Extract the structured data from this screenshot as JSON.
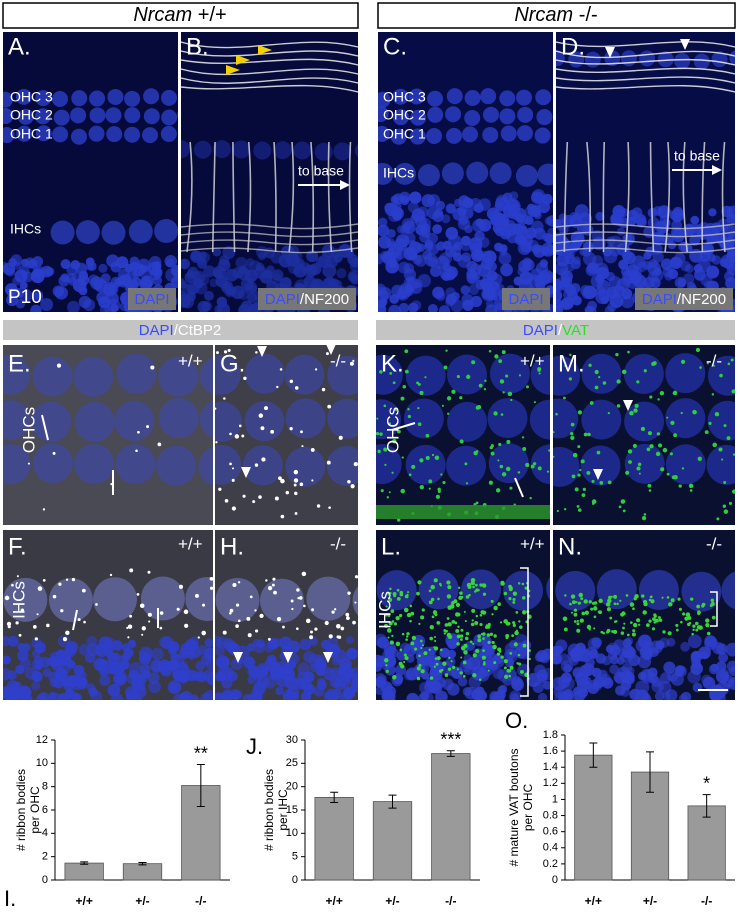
{
  "headers": [
    {
      "gene": "Nrcam",
      "genotype": "+/+"
    },
    {
      "gene": "Nrcam",
      "genotype": "-/-"
    }
  ],
  "stain_bars": [
    [
      "DAPI",
      "/CtBP2"
    ],
    [
      "DAPI",
      "/",
      "VAT"
    ]
  ],
  "panels": {
    "A": {
      "label": "A.",
      "rows": [
        "OHC 3",
        "OHC 2",
        "OHC 1"
      ],
      "inner": "IHCs",
      "age": "P10",
      "stain": "DAPI"
    },
    "B": {
      "label": "B.",
      "arrow": "to base",
      "stain": [
        "DAPI",
        "/NF200"
      ]
    },
    "C": {
      "label": "C.",
      "rows": [
        "OHC 3",
        "OHC 2",
        "OHC 1"
      ],
      "inner": "IHCs",
      "stain": "DAPI"
    },
    "D": {
      "label": "D.",
      "arrow": "to base",
      "stain": [
        "DAPI",
        "/NF200"
      ]
    },
    "E": {
      "label": "E.",
      "genotype": "+/+",
      "cells": "OHCs"
    },
    "F": {
      "label": "F.",
      "genotype": "+/+",
      "cells": "IHCs"
    },
    "G": {
      "label": "G.",
      "genotype": "-/-"
    },
    "H": {
      "label": "H.",
      "genotype": "-/-"
    },
    "K": {
      "label": "K.",
      "genotype": "+/+",
      "cells": "OHCs"
    },
    "L": {
      "label": "L.",
      "genotype": "+/+",
      "cells": "IHCs"
    },
    "M": {
      "label": "M.",
      "genotype": "-/-"
    },
    "N": {
      "label": "N.",
      "genotype": "-/-"
    }
  },
  "chart_data": [
    {
      "type": "bar",
      "panel_label": "I.",
      "ylabel": [
        "# ribbon bodies",
        "per OHC"
      ],
      "categories": [
        "+/+",
        "+/-",
        "-/-"
      ],
      "values": [
        1.45,
        1.4,
        8.1
      ],
      "errors": [
        0.1,
        0.1,
        1.8
      ],
      "value_annotations": [
        null,
        null,
        "**"
      ],
      "color": "#9a9a9a",
      "ylim": [
        0,
        12
      ],
      "yticks": [
        0,
        2,
        4,
        6,
        8,
        10,
        12
      ]
    },
    {
      "type": "bar",
      "panel_label": "J.",
      "ylabel": [
        "# ribbon bodies",
        "per IHC"
      ],
      "categories": [
        "+/+",
        "+/-",
        "-/-"
      ],
      "values": [
        17.7,
        16.8,
        27.1
      ],
      "errors": [
        1.1,
        1.4,
        0.6
      ],
      "value_annotations": [
        null,
        null,
        "***"
      ],
      "color": "#9a9a9a",
      "ylim": [
        0,
        30
      ],
      "yticks": [
        0,
        5,
        10,
        15,
        20,
        25,
        30
      ]
    },
    {
      "type": "bar",
      "panel_label": "O.",
      "ylabel": [
        "# mature VAT boutons",
        "per OHC"
      ],
      "categories": [
        "+/+",
        "+/-",
        "-/-"
      ],
      "values": [
        1.55,
        1.34,
        0.92
      ],
      "errors": [
        0.15,
        0.25,
        0.14
      ],
      "value_annotations": [
        null,
        null,
        "*"
      ],
      "color": "#9a9a9a",
      "ylim": [
        0,
        1.8
      ],
      "yticks": [
        0,
        0.2,
        0.4,
        0.6,
        0.8,
        1,
        1.2,
        1.4,
        1.6,
        1.8
      ]
    }
  ]
}
